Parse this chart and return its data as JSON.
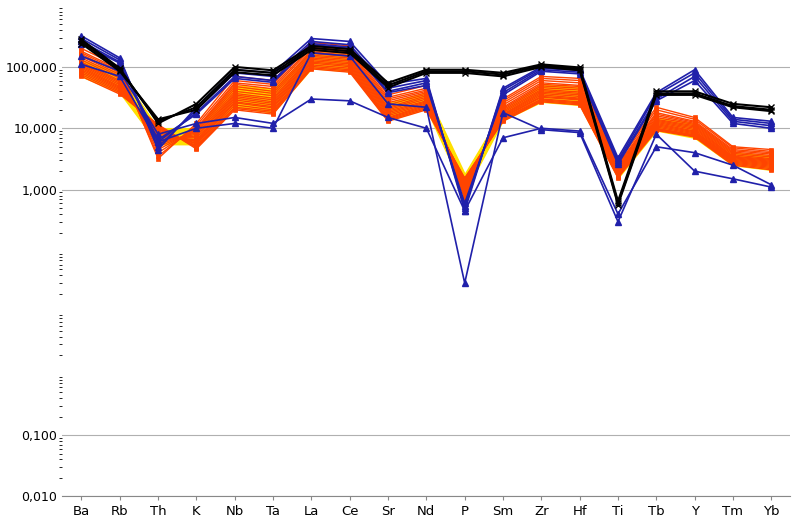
{
  "elements": [
    "Ba",
    "Rb",
    "Th",
    "K",
    "Nb",
    "Ta",
    "La",
    "Ce",
    "Sr",
    "Nd",
    "P",
    "Sm",
    "Zr",
    "Hf",
    "Ti",
    "Tb",
    "Y",
    "Tm",
    "Yb"
  ],
  "background_color": "#ffffff",
  "grid_color": "#b0b0b0",
  "orange_color": "#FF4400",
  "navy_color": "#2020AA",
  "black_color": "#000000",
  "yellow_color": "#FFE000",
  "orange_series": [
    [
      200000,
      100000,
      3200,
      12000,
      70000,
      60000,
      250000,
      220000,
      35000,
      50000,
      700,
      30000,
      70000,
      65000,
      3000,
      22000,
      15000,
      5000,
      4500
    ],
    [
      180000,
      90000,
      3500,
      11000,
      60000,
      52000,
      230000,
      200000,
      32000,
      45000,
      750,
      28000,
      65000,
      60000,
      2800,
      20000,
      14000,
      4800,
      4200
    ],
    [
      170000,
      85000,
      4000,
      10000,
      55000,
      48000,
      210000,
      185000,
      30000,
      42000,
      800,
      26000,
      60000,
      55000,
      2600,
      18000,
      13000,
      4500,
      4000
    ],
    [
      160000,
      80000,
      4500,
      9500,
      52000,
      44000,
      200000,
      175000,
      28000,
      40000,
      850,
      24000,
      55000,
      50000,
      2500,
      17000,
      12500,
      4300,
      3800
    ],
    [
      150000,
      75000,
      5000,
      9000,
      48000,
      40000,
      185000,
      165000,
      26000,
      38000,
      900,
      22000,
      52000,
      48000,
      2400,
      16000,
      12000,
      4100,
      3600
    ],
    [
      140000,
      70000,
      5500,
      8500,
      44000,
      37000,
      175000,
      155000,
      24000,
      36000,
      950,
      21000,
      49000,
      45000,
      2300,
      15000,
      11500,
      3900,
      3400
    ],
    [
      130000,
      65000,
      6000,
      8000,
      40000,
      34000,
      165000,
      148000,
      22000,
      34000,
      1000,
      20000,
      46000,
      42000,
      2200,
      14000,
      11000,
      3700,
      3200
    ],
    [
      120000,
      60000,
      6500,
      7500,
      37000,
      31000,
      155000,
      140000,
      21000,
      32000,
      1050,
      19000,
      43000,
      39000,
      2100,
      13500,
      10500,
      3500,
      3100
    ],
    [
      115000,
      57000,
      7000,
      7000,
      35000,
      29000,
      148000,
      132000,
      20000,
      30000,
      1100,
      18000,
      41000,
      37000,
      2000,
      13000,
      10000,
      3400,
      3000
    ],
    [
      110000,
      54000,
      7500,
      6500,
      33000,
      27000,
      140000,
      125000,
      19000,
      28000,
      1150,
      17000,
      39000,
      35000,
      1950,
      12500,
      9500,
      3300,
      2900
    ],
    [
      105000,
      51000,
      8000,
      6200,
      31000,
      25500,
      133000,
      118000,
      18000,
      27000,
      1200,
      16500,
      37000,
      33000,
      1900,
      12000,
      9000,
      3200,
      2800
    ],
    [
      100000,
      48000,
      8500,
      6000,
      29000,
      24000,
      126000,
      112000,
      17000,
      26000,
      1250,
      16000,
      35000,
      31000,
      1850,
      11500,
      8700,
      3100,
      2700
    ],
    [
      95000,
      46000,
      9000,
      5700,
      27000,
      22500,
      120000,
      106000,
      16000,
      25000,
      1300,
      15500,
      33000,
      30000,
      1800,
      11000,
      8400,
      3000,
      2600
    ],
    [
      90000,
      44000,
      9500,
      5500,
      26000,
      21500,
      115000,
      101000,
      15000,
      24000,
      1350,
      15000,
      32000,
      29000,
      1750,
      10500,
      8100,
      2900,
      2500
    ],
    [
      85000,
      42000,
      10000,
      5200,
      24000,
      20000,
      108000,
      95000,
      14500,
      23000,
      1400,
      14500,
      30000,
      27000,
      1700,
      10000,
      7800,
      2800,
      2400
    ],
    [
      80000,
      40000,
      10500,
      5000,
      22000,
      19000,
      102000,
      90000,
      14000,
      22000,
      1450,
      14000,
      29000,
      26000,
      1650,
      9800,
      7600,
      2700,
      2300
    ],
    [
      75000,
      38000,
      11000,
      4800,
      21000,
      18000,
      97000,
      86000,
      13500,
      21000,
      1500,
      13500,
      28000,
      25000,
      1600,
      9500,
      7400,
      2600,
      2200
    ],
    [
      70000,
      36000,
      11500,
      4600,
      20000,
      17000,
      93000,
      82000,
      13000,
      20000,
      1550,
      13000,
      27000,
      24000,
      1550,
      9200,
      7200,
      2500,
      2100
    ]
  ],
  "yellow_fill_upper": [
    130000,
    80000,
    10000,
    10000,
    50000,
    44000,
    180000,
    160000,
    26000,
    38000,
    1800,
    20000,
    52000,
    47000,
    2300,
    15000,
    12000,
    4000,
    3600
  ],
  "yellow_fill_lower": [
    70000,
    38000,
    5500,
    5500,
    22000,
    18000,
    95000,
    85000,
    13500,
    21000,
    900,
    13500,
    27000,
    24000,
    1550,
    9200,
    7000,
    2500,
    2100
  ],
  "navy_series": [
    [
      290000,
      130000,
      5000,
      20000,
      80000,
      70000,
      260000,
      230000,
      45000,
      60000,
      500,
      42000,
      95000,
      88000,
      3000,
      35000,
      80000,
      14000,
      12000
    ],
    [
      260000,
      120000,
      6000,
      18000,
      70000,
      60000,
      240000,
      210000,
      40000,
      55000,
      550,
      38000,
      90000,
      82000,
      2800,
      30000,
      70000,
      13000,
      11000
    ],
    [
      240000,
      115000,
      6500,
      17000,
      65000,
      56000,
      230000,
      200000,
      38000,
      50000,
      600,
      35000,
      85000,
      77000,
      2600,
      28000,
      60000,
      12000,
      10000
    ],
    [
      320000,
      140000,
      4500,
      22000,
      90000,
      80000,
      290000,
      260000,
      52000,
      65000,
      450,
      45000,
      100000,
      92000,
      3300,
      38000,
      90000,
      15000,
      13000
    ],
    [
      150000,
      85000,
      8000,
      12000,
      15000,
      12000,
      30000,
      28000,
      15000,
      10000,
      450,
      7000,
      10000,
      9000,
      400,
      5000,
      4000,
      2500,
      1200
    ],
    [
      110000,
      70000,
      6000,
      10000,
      12000,
      10000,
      170000,
      150000,
      25000,
      22000,
      30,
      18000,
      9500,
      8500,
      300,
      8000,
      2000,
      1500,
      1100
    ]
  ],
  "black_x_series": [
    [
      280000,
      95000,
      12000,
      25000,
      100000,
      88000,
      220000,
      195000,
      55000,
      90000,
      90000,
      80000,
      110000,
      98000,
      650,
      40000,
      40000,
      25000,
      22000
    ],
    [
      260000,
      90000,
      13000,
      22000,
      90000,
      80000,
      205000,
      180000,
      50000,
      85000,
      85000,
      75000,
      105000,
      93000,
      600,
      37000,
      37000,
      23000,
      20000
    ],
    [
      240000,
      85000,
      14000,
      20000,
      82000,
      73000,
      190000,
      168000,
      46000,
      80000,
      80000,
      70000,
      100000,
      88000,
      570,
      35000,
      35000,
      22000,
      19000
    ]
  ],
  "lw_orange": 1.0,
  "lw_navy": 1.2,
  "lw_black": 1.5,
  "marker_size_navy": 5,
  "marker_size_black": 5,
  "marker_size_orange": 3
}
